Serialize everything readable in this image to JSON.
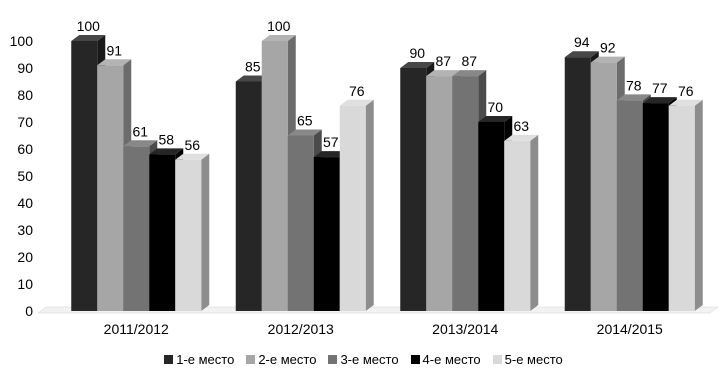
{
  "chart_data": {
    "type": "bar",
    "categories": [
      "2011/2012",
      "2012/2013",
      "2013/2014",
      "2014/2015"
    ],
    "series": [
      {
        "name": "1-е место",
        "values": [
          100,
          85,
          90,
          94
        ],
        "color": "#262626"
      },
      {
        "name": "2-е место",
        "values": [
          91,
          100,
          87,
          92
        ],
        "color": "#a6a6a6"
      },
      {
        "name": "3-е место",
        "values": [
          61,
          65,
          87,
          78
        ],
        "color": "#737373"
      },
      {
        "name": "4-е место",
        "values": [
          58,
          57,
          70,
          77
        ],
        "color": "#000000"
      },
      {
        "name": "5-е место",
        "values": [
          56,
          76,
          63,
          76
        ],
        "color": "#d9d9d9"
      }
    ],
    "yticks": [
      0,
      10,
      20,
      30,
      40,
      50,
      60,
      70,
      80,
      90,
      100
    ],
    "ylim": [
      0,
      100
    ],
    "grid": false,
    "legend_position": "bottom",
    "style": "3d-clustered-column"
  }
}
